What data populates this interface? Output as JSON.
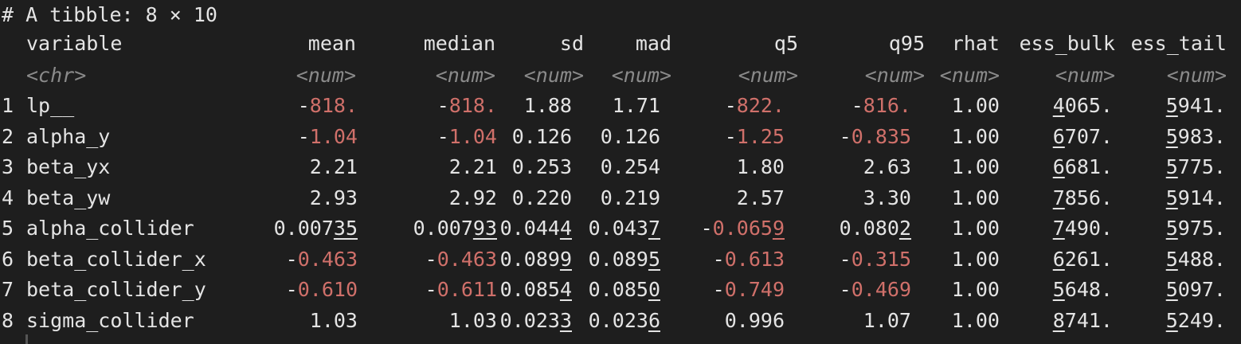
{
  "header": "# A tibble: 8 × 10",
  "columns": [
    "variable",
    "mean",
    "median",
    "sd",
    "mad",
    "q5",
    "q95",
    "rhat",
    "ess_bulk",
    "ess_tail"
  ],
  "types": [
    "<chr>",
    "<num>",
    "<num>",
    "<num>",
    "<num>",
    "<num>",
    "<num>",
    "<num>",
    "<num>",
    "<num>"
  ],
  "rows": [
    {
      "index": "1",
      "cells": [
        {
          "text": "lp__"
        },
        {
          "sign": "-",
          "neg": "818."
        },
        {
          "sign": "-",
          "neg": "818."
        },
        {
          "text": "1.88"
        },
        {
          "text": "1.71"
        },
        {
          "sign": "-",
          "neg": "822."
        },
        {
          "sign": "-",
          "neg": "816."
        },
        {
          "text": "1.00"
        },
        {
          "u": "4",
          "text": "065."
        },
        {
          "u": "5",
          "text": "941."
        }
      ]
    },
    {
      "index": "2",
      "cells": [
        {
          "text": "alpha_y"
        },
        {
          "sign": "-",
          "neg": "1.04"
        },
        {
          "sign": "-",
          "neg": "1.04"
        },
        {
          "text": "0.126"
        },
        {
          "text": "0.126"
        },
        {
          "sign": "-",
          "neg": "1.25"
        },
        {
          "sign": "-",
          "neg": "0.835"
        },
        {
          "text": "1.00"
        },
        {
          "u": "6",
          "text": "707."
        },
        {
          "u": "5",
          "text": "983."
        }
      ]
    },
    {
      "index": "3",
      "cells": [
        {
          "text": "beta_yx"
        },
        {
          "text": "2.21"
        },
        {
          "text": "2.21"
        },
        {
          "text": "0.253"
        },
        {
          "text": "0.254"
        },
        {
          "text": "1.80"
        },
        {
          "text": "2.63"
        },
        {
          "text": "1.00"
        },
        {
          "u": "6",
          "text": "681."
        },
        {
          "u": "5",
          "text": "775."
        }
      ]
    },
    {
      "index": "4",
      "cells": [
        {
          "text": "beta_yw"
        },
        {
          "text": "2.93"
        },
        {
          "text": "2.92"
        },
        {
          "text": "0.220"
        },
        {
          "text": "0.219"
        },
        {
          "text": "2.57"
        },
        {
          "text": "3.30"
        },
        {
          "text": "1.00"
        },
        {
          "u": "7",
          "text": "856."
        },
        {
          "u": "5",
          "text": "914."
        }
      ]
    },
    {
      "index": "5",
      "cells": [
        {
          "text": "alpha_collider"
        },
        {
          "text": "0.007",
          "u": "35"
        },
        {
          "text": "0.007",
          "u": "93"
        },
        {
          "text": "0.044",
          "u": "4"
        },
        {
          "text": "0.043",
          "u": "7"
        },
        {
          "sign": "-",
          "neg": "0.065",
          "negu": "9"
        },
        {
          "text": "0.080",
          "u": "2"
        },
        {
          "text": "1.00"
        },
        {
          "u": "7",
          "text": "490."
        },
        {
          "u": "5",
          "text": "975."
        }
      ]
    },
    {
      "index": "6",
      "cells": [
        {
          "text": "beta_collider_x"
        },
        {
          "sign": "-",
          "neg": "0.463"
        },
        {
          "sign": "-",
          "neg": "0.463"
        },
        {
          "text": "0.089",
          "u": "9"
        },
        {
          "text": "0.089",
          "u": "5"
        },
        {
          "sign": "-",
          "neg": "0.613"
        },
        {
          "sign": "-",
          "neg": "0.315"
        },
        {
          "text": "1.00"
        },
        {
          "u": "6",
          "text": "261."
        },
        {
          "u": "5",
          "text": "488."
        }
      ]
    },
    {
      "index": "7",
      "cells": [
        {
          "text": "beta_collider_y"
        },
        {
          "sign": "-",
          "neg": "0.610"
        },
        {
          "sign": "-",
          "neg": "0.611"
        },
        {
          "text": "0.085",
          "u": "4"
        },
        {
          "text": "0.085",
          "u": "0"
        },
        {
          "sign": "-",
          "neg": "0.749"
        },
        {
          "sign": "-",
          "neg": "0.469"
        },
        {
          "text": "1.00"
        },
        {
          "u": "5",
          "text": "648."
        },
        {
          "u": "5",
          "text": "097."
        }
      ]
    },
    {
      "index": "8",
      "cells": [
        {
          "text": "sigma_collider"
        },
        {
          "text": "1.03"
        },
        {
          "text": "1.03"
        },
        {
          "text": "0.023",
          "u": "3"
        },
        {
          "text": "0.023",
          "u": "6"
        },
        {
          "text": "0.996"
        },
        {
          "text": "1.07"
        },
        {
          "text": "1.00"
        },
        {
          "u": "8",
          "text": "741."
        },
        {
          "u": "5",
          "text": "249."
        }
      ]
    }
  ]
}
